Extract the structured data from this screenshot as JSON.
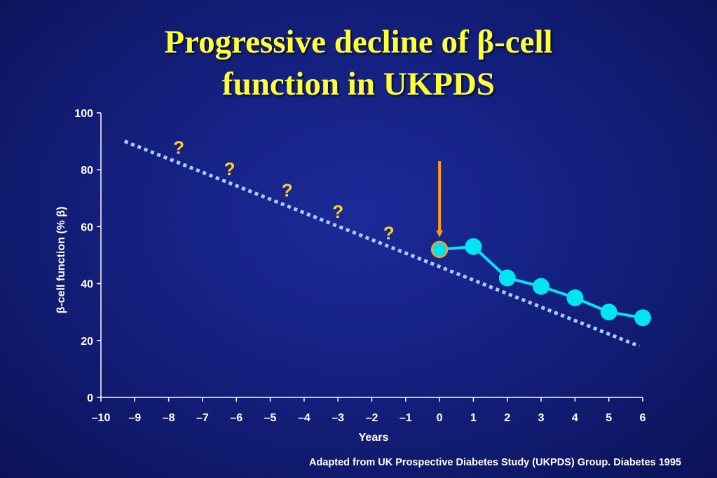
{
  "title": {
    "line1": "Progressive decline of β-cell",
    "line2": "function in UKPDS"
  },
  "footer": "Adapted from UK Prospective Diabetes Study (UKPDS) Group. Diabetes 1995",
  "chart_data": {
    "type": "line",
    "xlabel": "Years",
    "ylabel": "β-cell function (% β)",
    "xlim": [
      -10,
      6
    ],
    "ylim": [
      0,
      100
    ],
    "x_ticks": [
      -10,
      -9,
      -8,
      -7,
      -6,
      -5,
      -4,
      -3,
      -2,
      -1,
      0,
      1,
      2,
      3,
      4,
      5,
      6
    ],
    "x_tick_labels": [
      "–10",
      "–9",
      "–8",
      "–7",
      "–6",
      "–5",
      "–4",
      "–3",
      "–2",
      "–1",
      "0",
      "1",
      "2",
      "3",
      "4",
      "5",
      "6"
    ],
    "y_ticks": [
      0,
      20,
      40,
      60,
      80,
      100
    ],
    "y_tick_labels": [
      "0",
      "20",
      "40",
      "60",
      "80",
      "100"
    ],
    "grid": false,
    "series": [
      {
        "color": "#00e5f0",
        "style": "solid-with-markers",
        "x": [
          0,
          1,
          2,
          3,
          4,
          5,
          6
        ],
        "y": [
          52,
          53,
          42,
          39,
          35,
          30,
          28
        ],
        "first_marker_edge_color": "#ff9a1a"
      }
    ],
    "trend_line": {
      "style": "dotted",
      "color": "#a6cfff",
      "x": [
        -9.3,
        5.9
      ],
      "y": [
        90,
        18
      ]
    },
    "annotations": [
      {
        "text": "?",
        "x": -7.7,
        "y": 88,
        "color": "#ffd21f"
      },
      {
        "text": "?",
        "x": -6.2,
        "y": 80.5,
        "color": "#ffd21f"
      },
      {
        "text": "?",
        "x": -4.5,
        "y": 73,
        "color": "#ffd21f"
      },
      {
        "text": "?",
        "x": -3.0,
        "y": 65.5,
        "color": "#ffd21f"
      },
      {
        "text": "?",
        "x": -1.5,
        "y": 58,
        "color": "#ffd21f"
      }
    ],
    "arrow": {
      "x": 0,
      "y_from": 83,
      "y_to": 56,
      "color": "#ff9a1a"
    }
  }
}
